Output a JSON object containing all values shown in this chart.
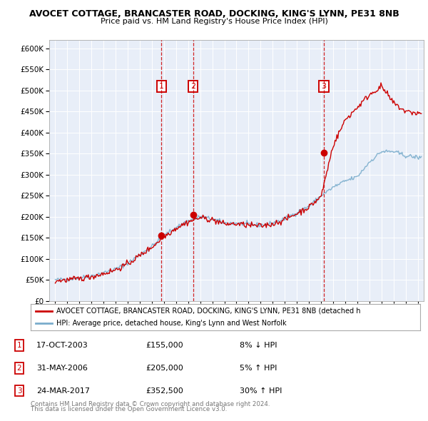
{
  "title": "AVOCET COTTAGE, BRANCASTER ROAD, DOCKING, KING'S LYNN, PE31 8NB",
  "subtitle": "Price paid vs. HM Land Registry's House Price Index (HPI)",
  "red_label": "AVOCET COTTAGE, BRANCASTER ROAD, DOCKING, KING'S LYNN, PE31 8NB (detached h",
  "blue_label": "HPI: Average price, detached house, King's Lynn and West Norfolk",
  "footnote1": "Contains HM Land Registry data © Crown copyright and database right 2024.",
  "footnote2": "This data is licensed under the Open Government Licence v3.0.",
  "transactions": [
    {
      "num": 1,
      "date": "17-OCT-2003",
      "price": "£155,000",
      "change": "8% ↓ HPI",
      "year": 2003.79
    },
    {
      "num": 2,
      "date": "31-MAY-2006",
      "price": "£205,000",
      "change": "5% ↑ HPI",
      "year": 2006.41
    },
    {
      "num": 3,
      "date": "24-MAR-2017",
      "price": "£352,500",
      "change": "30% ↑ HPI",
      "year": 2017.23
    }
  ],
  "trans_prices": [
    155000,
    205000,
    352500
  ],
  "ylim_max": 620000,
  "ytick_step": 50000,
  "xlim_start": 1994.5,
  "xlim_end": 2025.5,
  "background_color": "#ffffff",
  "plot_bg_color": "#e8eef8",
  "grid_color": "#ffffff",
  "red_color": "#cc0000",
  "blue_color": "#7aadcc",
  "marker_color": "#cc0000",
  "vline_color": "#cc0000",
  "box_color": "#cc0000",
  "legend_border": "#aaaaaa",
  "spine_color": "#aaaaaa"
}
